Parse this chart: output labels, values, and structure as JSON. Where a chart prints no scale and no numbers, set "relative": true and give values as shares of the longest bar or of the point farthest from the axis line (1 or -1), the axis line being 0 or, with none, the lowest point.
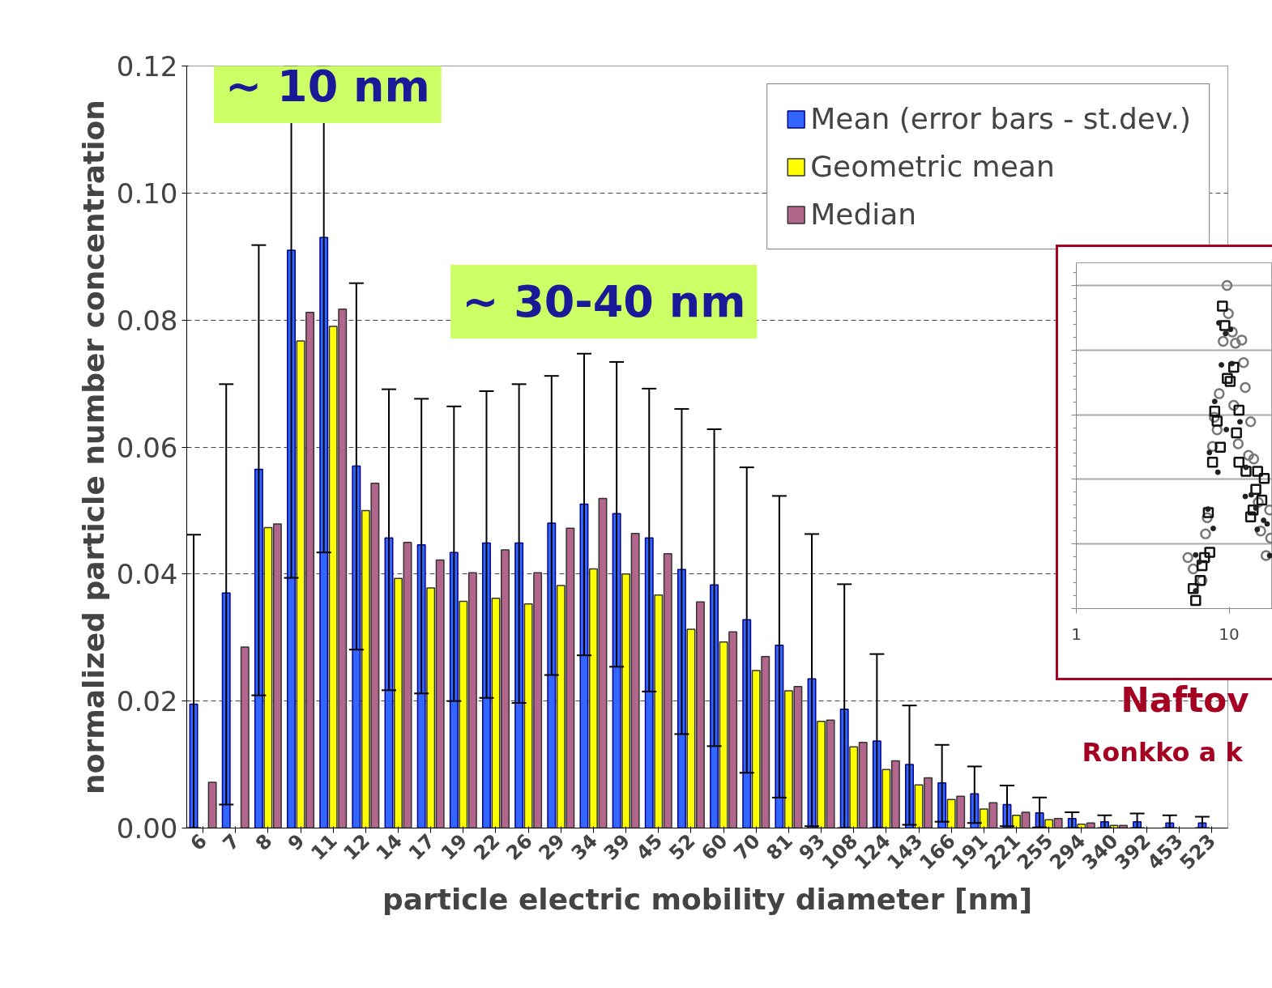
{
  "chart_data": [
    {
      "type": "bar",
      "xlabel": "particle electric mobility diameter [nm]",
      "ylabel": "normalized particle number concentration",
      "categories": [
        "6",
        "7",
        "8",
        "9",
        "11",
        "12",
        "14",
        "17",
        "19",
        "22",
        "26",
        "29",
        "34",
        "39",
        "45",
        "52",
        "60",
        "70",
        "81",
        "93",
        "108",
        "124",
        "143",
        "166",
        "191",
        "221",
        "255",
        "294",
        "340",
        "392",
        "453",
        "523"
      ],
      "series": [
        {
          "name": "Mean (error bars - st.dev.)",
          "color": "#3366ff",
          "values": [
            0.0195,
            0.037,
            0.0565,
            0.091,
            0.093,
            0.057,
            0.0457,
            0.0446,
            0.0434,
            0.0449,
            0.0449,
            0.048,
            0.051,
            0.0495,
            0.0457,
            0.0407,
            0.0383,
            0.0328,
            0.0288,
            0.0235,
            0.0187,
            0.0137,
            0.01,
            0.0071,
            0.0054,
            0.0037,
            0.0024,
            0.0015,
            0.001,
            0.001,
            0.0008,
            0.0008
          ],
          "errors": [
            [
              0,
              0.0462
            ],
            [
              0.0037,
              0.0699
            ],
            [
              0.0209,
              0.0918
            ],
            [
              0.0394,
              0.12
            ],
            [
              0.0434,
              0.12
            ],
            [
              0.0281,
              0.0858
            ],
            [
              0.0217,
              0.0691
            ],
            [
              0.0212,
              0.0676
            ],
            [
              0.02,
              0.0664
            ],
            [
              0.0205,
              0.0688
            ],
            [
              0.0197,
              0.0699
            ],
            [
              0.0241,
              0.0712
            ],
            [
              0.0272,
              0.0747
            ],
            [
              0.0254,
              0.0734
            ],
            [
              0.0215,
              0.0692
            ],
            [
              0.0148,
              0.066
            ],
            [
              0.0129,
              0.0628
            ],
            [
              0.0087,
              0.0568
            ],
            [
              0.0048,
              0.0523
            ],
            [
              0.0003,
              0.0463
            ],
            [
              0,
              0.0384
            ],
            [
              0,
              0.0274
            ],
            [
              0.0005,
              0.0193
            ],
            [
              0.001,
              0.0131
            ],
            [
              0.0008,
              0.0097
            ],
            [
              0.0003,
              0.0067
            ],
            [
              0.0001,
              0.0048
            ],
            [
              0,
              0.0025
            ],
            [
              0,
              0.002
            ],
            [
              0,
              0.0023
            ],
            [
              0,
              0.002
            ],
            [
              0,
              0.0018
            ]
          ]
        },
        {
          "name": "Geometric mean",
          "color": "#ffff00",
          "values": [
            null,
            null,
            0.0473,
            0.0767,
            0.079,
            0.05,
            0.0393,
            0.0378,
            0.0357,
            0.0362,
            0.0353,
            0.0382,
            0.0408,
            0.04,
            0.0367,
            0.0313,
            0.0293,
            0.0248,
            0.0216,
            0.0168,
            0.0128,
            0.0092,
            0.0068,
            0.0045,
            0.003,
            0.002,
            0.0013,
            0.0006,
            0.0004,
            null,
            null,
            null
          ]
        },
        {
          "name": "Median",
          "color": "#b3668c",
          "values": [
            0.0072,
            0.0285,
            0.0479,
            0.0812,
            0.0817,
            0.0543,
            0.045,
            0.0422,
            0.0402,
            0.0438,
            0.0402,
            0.0472,
            0.0519,
            0.0464,
            0.0432,
            0.0356,
            0.0309,
            0.027,
            0.0223,
            0.017,
            0.0135,
            0.0106,
            0.0079,
            0.005,
            0.004,
            0.0025,
            0.0015,
            0.0008,
            0.0004,
            null,
            null,
            null
          ]
        }
      ],
      "ylim": [
        0,
        0.12
      ],
      "yticks": [
        {
          "value": 0,
          "label": "0.00"
        },
        {
          "value": 0.02,
          "label": "0.02"
        },
        {
          "value": 0.04,
          "label": "0.04"
        },
        {
          "value": 0.06,
          "label": "0.06"
        },
        {
          "value": 0.08,
          "label": "0.08"
        },
        {
          "value": 0.1,
          "label": "0.10"
        },
        {
          "value": 0.12,
          "label": "0.12"
        }
      ],
      "grid": "y",
      "legend": "top right",
      "annotations": [
        "~ 10 nm",
        "~ 30-40 nm"
      ]
    },
    {
      "type": "scatter",
      "relative": true,
      "log": "x",
      "xlim": [
        1,
        19.2
      ],
      "xticks": [
        1,
        10
      ],
      "grid": "y",
      "series": [
        {
          "color": "#777777",
          "marker": "circle",
          "x": [
            9.69,
            9.89,
            10.49,
            9.14,
            11.0,
            12.1,
            12.43,
            12.76,
            8.61,
            10.72,
            13.83,
            8.0,
            8.35,
            11.47,
            7.79,
            13.4,
            14.49,
            14.89,
            15.52,
            18.41,
            7.01,
            7.19,
            5.37,
            5.82,
            6.65,
            16.1,
            17.45,
            18.7
          ],
          "values": [
            1.0,
            0.913,
            0.856,
            0.827,
            0.821,
            0.831,
            0.761,
            0.684,
            0.665,
            0.629,
            0.578,
            0.592,
            0.553,
            0.51,
            0.502,
            0.474,
            0.463,
            null,
            0.329,
            0.305,
            0.231,
            0.281,
            0.158,
            0.123,
            0.087,
            0.24,
            0.164,
            0.218
          ]
        },
        {
          "color": "#111111",
          "marker": "square",
          "x": [
            9.04,
            9.38,
            10.72,
            9.73,
            10.16,
            8.05,
            8.35,
            11.6,
            11.17,
            8.76,
            7.79,
            11.6,
            12.9,
            15.36,
            16.98,
            14.96,
            16.37,
            14.35,
            13.83,
            7.31,
            7.47,
            6.9,
            6.65,
            6.47,
            5.82,
            6.04
          ],
          "values": [
            0.936,
            0.876,
            0.747,
            0.712,
            0.703,
            0.611,
            0.58,
            0.614,
            0.544,
            0.499,
            0.453,
            0.453,
            0.425,
            0.425,
            0.403,
            0.369,
            0.336,
            0.305,
            0.284,
            0.297,
            0.174,
            0.158,
            0.133,
            0.087,
            0.062,
            0.025
          ]
        },
        {
          "color": "#222222",
          "marker": "dot",
          "x": [
            8.57,
            9.48,
            10.21,
            8.9,
            10.43,
            8.05,
            11.78,
            9.59,
            7.43,
            8.44,
            12.9,
            12.76,
            13.97,
            14.96,
            15.28,
            16.81,
            17.74,
            7.87,
            7.27,
            6.04,
            6.37,
            6.04,
            18.41
          ],
          "values": [
            0.884,
            0.851,
            0.864,
            0.754,
            0.758,
            0.641,
            0.578,
            0.554,
            0.483,
            0.422,
            0.437,
            0.347,
            0.352,
            0.311,
            0.245,
            0.273,
            0.262,
            0.248,
            0.308,
            0.166,
            0.144,
            0.055,
            0.164
          ]
        }
      ],
      "annotations": [
        "Naftov",
        "Ronkko a k"
      ]
    }
  ]
}
